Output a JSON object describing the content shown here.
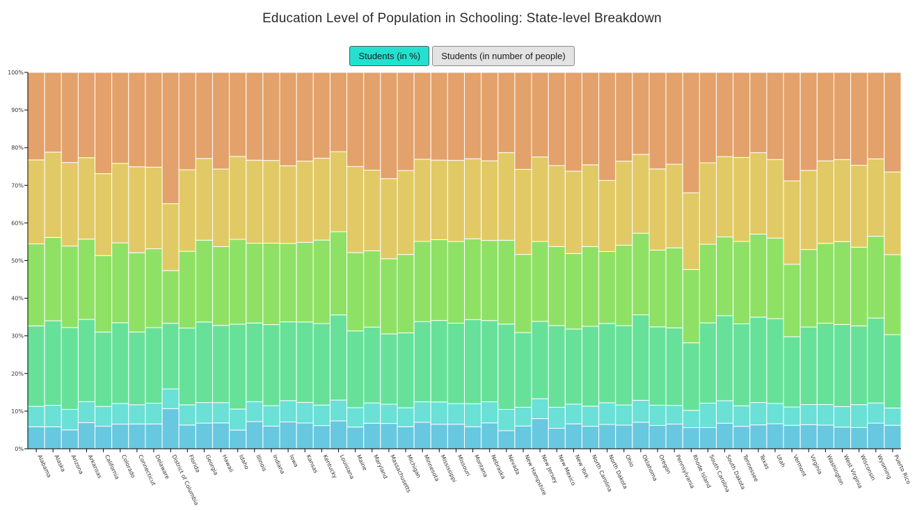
{
  "title": "Education Level of Population in Schooling: State-level Breakdown",
  "buttons": {
    "percent_label": "Students (in %)",
    "count_label": "Students (in number of people)",
    "active": "percent"
  },
  "chart_data": {
    "type": "bar",
    "stacked": true,
    "title": "Education Level of Population in Schooling: State-level Breakdown",
    "xlabel": "",
    "ylabel": "",
    "ylim": [
      0,
      100
    ],
    "yticks": [
      "0%",
      "10%",
      "20%",
      "30%",
      "40%",
      "50%",
      "60%",
      "70%",
      "80%",
      "90%",
      "100%"
    ],
    "grid": false,
    "legend": "none",
    "colors": [
      "#68c8df",
      "#6ae0d6",
      "#67e19a",
      "#8fe166",
      "#e1ca66",
      "#e3a26b"
    ],
    "categories": [
      "Alabama",
      "Alaska",
      "Arizona",
      "Arkansas",
      "California",
      "Colorado",
      "Connecticut",
      "Delaware",
      "District of Columbia",
      "Florida",
      "Georgia",
      "Hawaii",
      "Idaho",
      "Illinois",
      "Indiana",
      "Iowa",
      "Kansas",
      "Kentucky",
      "Louisiana",
      "Maine",
      "Maryland",
      "Massachusetts",
      "Michigan",
      "Minnesota",
      "Mississippi",
      "Missouri",
      "Montana",
      "Nebraska",
      "Nevada",
      "New Hampshire",
      "New Jersey",
      "New Mexico",
      "New York",
      "North Carolina",
      "North Dakota",
      "Ohio",
      "Oklahoma",
      "Oregon",
      "Pennsylvania",
      "Rhode Island",
      "South Carolina",
      "South Dakota",
      "Tennessee",
      "Texas",
      "Utah",
      "Vermont",
      "Virginia",
      "Washington",
      "West Virginia",
      "Wisconsin",
      "Wyoming",
      "Puerto Rico"
    ],
    "series": [
      {
        "values": [
          5.6,
          5.5,
          4.8,
          6.7,
          5.7,
          6.2,
          6.2,
          6.2,
          9.0,
          6.0,
          6.5,
          6.5,
          4.8,
          6.8,
          5.8,
          6.8,
          6.5,
          5.9,
          7.1,
          5.5,
          6.3,
          6.2,
          5.6,
          6.7,
          6.3,
          6.2,
          5.6,
          6.5,
          4.6,
          5.7,
          7.6,
          5.2,
          6.2,
          5.7,
          6.2,
          6.0,
          6.8,
          5.9,
          6.2,
          5.3,
          5.4,
          6.5,
          5.7,
          6.1,
          6.4,
          5.9,
          6.0,
          6.0,
          5.5,
          5.4,
          6.5,
          6.0
        ]
      },
      {
        "values": [
          5.2,
          5.4,
          5.2,
          5.4,
          5.0,
          5.2,
          4.8,
          5.2,
          4.4,
          5.1,
          5.2,
          5.1,
          5.4,
          5.0,
          5.2,
          5.4,
          5.2,
          5.2,
          5.3,
          4.9,
          5.0,
          4.7,
          4.8,
          5.2,
          5.7,
          5.2,
          5.9,
          5.3,
          5.4,
          4.7,
          5.0,
          5.3,
          4.9,
          5.1,
          5.5,
          5.1,
          5.6,
          5.1,
          4.7,
          4.3,
          6.2,
          5.7,
          5.2,
          5.7,
          5.2,
          4.6,
          5.0,
          5.2,
          5.2,
          5.8,
          5.1,
          4.4
        ]
      },
      {
        "values": [
          20.5,
          21.2,
          20.8,
          21.1,
          18.8,
          20.3,
          18.2,
          18.9,
          14.7,
          19.4,
          20.4,
          19.4,
          21.8,
          19.7,
          20.7,
          20.0,
          20.3,
          20.7,
          21.7,
          19.4,
          18.7,
          17.2,
          19.0,
          20.3,
          20.9,
          20.3,
          21.4,
          20.4,
          21.7,
          18.7,
          19.5,
          20.7,
          18.7,
          20.2,
          20.2,
          20.1,
          21.9,
          19.8,
          19.5,
          16.9,
          20.4,
          21.6,
          20.8,
          21.8,
          21.7,
          17.7,
          19.3,
          20.6,
          20.8,
          20.0,
          21.5,
          18.7
        ]
      },
      {
        "values": [
          20.9,
          20.9,
          20.7,
          20.6,
          19.3,
          20.1,
          19.8,
          19.7,
          11.8,
          19.4,
          20.7,
          19.8,
          21.8,
          20.0,
          20.8,
          19.9,
          20.1,
          21.2,
          21.2,
          19.8,
          18.8,
          18.4,
          19.9,
          20.3,
          20.7,
          20.6,
          20.6,
          20.1,
          21.3,
          19.6,
          20.1,
          20.0,
          18.8,
          20.2,
          18.3,
          20.4,
          20.9,
          19.4,
          20.1,
          18.3,
          20.0,
          20.0,
          20.9,
          21.2,
          20.6,
          18.2,
          19.3,
          20.2,
          21.0,
          20.0,
          20.7,
          20.4
        ]
      },
      {
        "values": [
          21.4,
          21.4,
          21.2,
          20.9,
          20.7,
          20.0,
          21.5,
          20.4,
          15.0,
          20.6,
          20.7,
          19.5,
          21.3,
          20.8,
          21.1,
          19.7,
          20.5,
          20.8,
          20.4,
          21.8,
          19.9,
          19.6,
          21.3,
          20.8,
          20.4,
          20.5,
          20.4,
          20.0,
          22.3,
          21.3,
          21.3,
          20.5,
          20.5,
          20.7,
          18.1,
          21.3,
          20.2,
          20.5,
          21.0,
          19.2,
          20.7,
          20.4,
          21.3,
          20.8,
          20.1,
          21.0,
          19.7,
          20.9,
          20.8,
          20.8,
          19.6,
          21.1
        ]
      },
      {
        "values": [
          22.3,
          20.0,
          22.9,
          21.9,
          25.6,
          22.9,
          23.6,
          23.7,
          29.4,
          24.6,
          21.8,
          24.3,
          21.6,
          22.0,
          22.5,
          23.7,
          22.4,
          21.8,
          20.2,
          23.8,
          24.1,
          26.0,
          24.9,
          22.0,
          22.5,
          22.2,
          22.0,
          22.2,
          20.4,
          24.3,
          21.3,
          23.6,
          24.6,
          23.4,
          27.5,
          22.5,
          21.0,
          24.4,
          23.1,
          30.1,
          23.0,
          21.4,
          21.6,
          20.5,
          22.3,
          27.3,
          24.4,
          22.4,
          22.1,
          23.6,
          21.9,
          25.4
        ]
      }
    ]
  }
}
